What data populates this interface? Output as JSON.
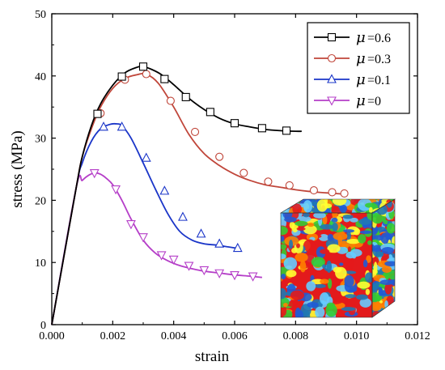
{
  "chart_data": {
    "type": "line",
    "xlabel": "strain",
    "ylabel": "stress (MPa)",
    "xlim": [
      0,
      0.012
    ],
    "ylim": [
      0,
      50
    ],
    "x_ticks": [
      "0.000",
      "0.002",
      "0.004",
      "0.006",
      "0.008",
      "0.010",
      "0.012"
    ],
    "y_ticks": [
      "0",
      "10",
      "20",
      "30",
      "40",
      "50"
    ],
    "legend_position": "top-right",
    "legend_symbol": "μ",
    "series": [
      {
        "name": "=0.6",
        "color": "#000000",
        "marker": "square",
        "x": [
          0,
          0.0008,
          0.001,
          0.0013,
          0.0016,
          0.002,
          0.0024,
          0.0028,
          0.003,
          0.0033,
          0.0036,
          0.004,
          0.0045,
          0.005,
          0.0055,
          0.006,
          0.0065,
          0.007,
          0.0075,
          0.008,
          0.0082
        ],
        "y": [
          0,
          22,
          27,
          32,
          35.5,
          38.5,
          40.5,
          41.4,
          41.5,
          41.0,
          40.2,
          38.6,
          36.4,
          34.6,
          33.2,
          32.3,
          31.8,
          31.4,
          31.2,
          31.1,
          31.1
        ],
        "marker_x": [
          0.0015,
          0.0023,
          0.003,
          0.0037,
          0.0044,
          0.0052,
          0.006,
          0.0069,
          0.0077
        ],
        "marker_y": [
          33.9,
          39.9,
          41.5,
          39.5,
          36.6,
          34.2,
          32.4,
          31.6,
          31.2
        ]
      },
      {
        "name": "=0.3",
        "color": "#c0463a",
        "marker": "circle",
        "x": [
          0,
          0.0008,
          0.001,
          0.0013,
          0.0016,
          0.002,
          0.0024,
          0.0028,
          0.0031,
          0.0035,
          0.004,
          0.0045,
          0.005,
          0.0055,
          0.006,
          0.0065,
          0.007,
          0.0075,
          0.008,
          0.0085,
          0.009,
          0.0096
        ],
        "y": [
          0,
          22,
          27,
          31.5,
          35,
          38,
          39.6,
          40.2,
          40.3,
          38.8,
          35.0,
          30.6,
          27.5,
          25.6,
          24.2,
          23.2,
          22.5,
          22.1,
          21.7,
          21.4,
          21.2,
          21.0
        ],
        "marker_x": [
          0.0016,
          0.0024,
          0.0031,
          0.0039,
          0.0047,
          0.0055,
          0.0063,
          0.0071,
          0.0078,
          0.0086,
          0.0092,
          0.0096
        ],
        "marker_y": [
          34.0,
          39.4,
          40.3,
          36.0,
          31.0,
          27.0,
          24.4,
          23.0,
          22.4,
          21.6,
          21.3,
          21.1
        ]
      },
      {
        "name": "=0.1",
        "color": "#1a35c8",
        "marker": "triangle-up",
        "x": [
          0,
          0.0008,
          0.001,
          0.0013,
          0.0016,
          0.0019,
          0.0021,
          0.0023,
          0.0026,
          0.003,
          0.0034,
          0.0038,
          0.0042,
          0.0046,
          0.005,
          0.0054,
          0.0058,
          0.0062
        ],
        "y": [
          0,
          22,
          26,
          29.5,
          31.5,
          32.2,
          32.3,
          32.0,
          30.0,
          26.0,
          21.8,
          17.9,
          15.0,
          13.6,
          13.0,
          12.8,
          12.5,
          12.2
        ],
        "marker_x": [
          0.0017,
          0.0023,
          0.0031,
          0.0037,
          0.0043,
          0.0049,
          0.0055,
          0.0061
        ],
        "marker_y": [
          31.8,
          31.8,
          26.8,
          21.5,
          17.3,
          14.6,
          13.0,
          12.3
        ]
      },
      {
        "name": "=0",
        "color": "#b53ec8",
        "marker": "triangle-down",
        "x": [
          0,
          0.0008,
          0.001,
          0.0012,
          0.0014,
          0.0016,
          0.0018,
          0.002,
          0.0023,
          0.0026,
          0.003,
          0.0034,
          0.0038,
          0.0042,
          0.0046,
          0.005,
          0.0055,
          0.006,
          0.0065,
          0.0069
        ],
        "y": [
          0,
          22,
          23.2,
          24.0,
          24.4,
          24.2,
          23.5,
          22.5,
          20.0,
          17.0,
          13.6,
          11.5,
          10.3,
          9.5,
          9.0,
          8.6,
          8.3,
          8.0,
          7.8,
          7.6
        ],
        "marker_x": [
          0.0014,
          0.0021,
          0.0026,
          0.003,
          0.0036,
          0.004,
          0.0045,
          0.005,
          0.0055,
          0.006,
          0.0066
        ],
        "marker_y": [
          24.4,
          21.8,
          16.2,
          14.1,
          11.2,
          10.5,
          9.5,
          8.8,
          8.3,
          8.0,
          7.8
        ]
      }
    ]
  },
  "inset": {
    "kind": "3d-cube-contour",
    "palette": [
      "#e31a1c",
      "#ff7f00",
      "#ffff33",
      "#33cc33",
      "#1f5bd6",
      "#1f78b4",
      "#66ccff"
    ]
  }
}
